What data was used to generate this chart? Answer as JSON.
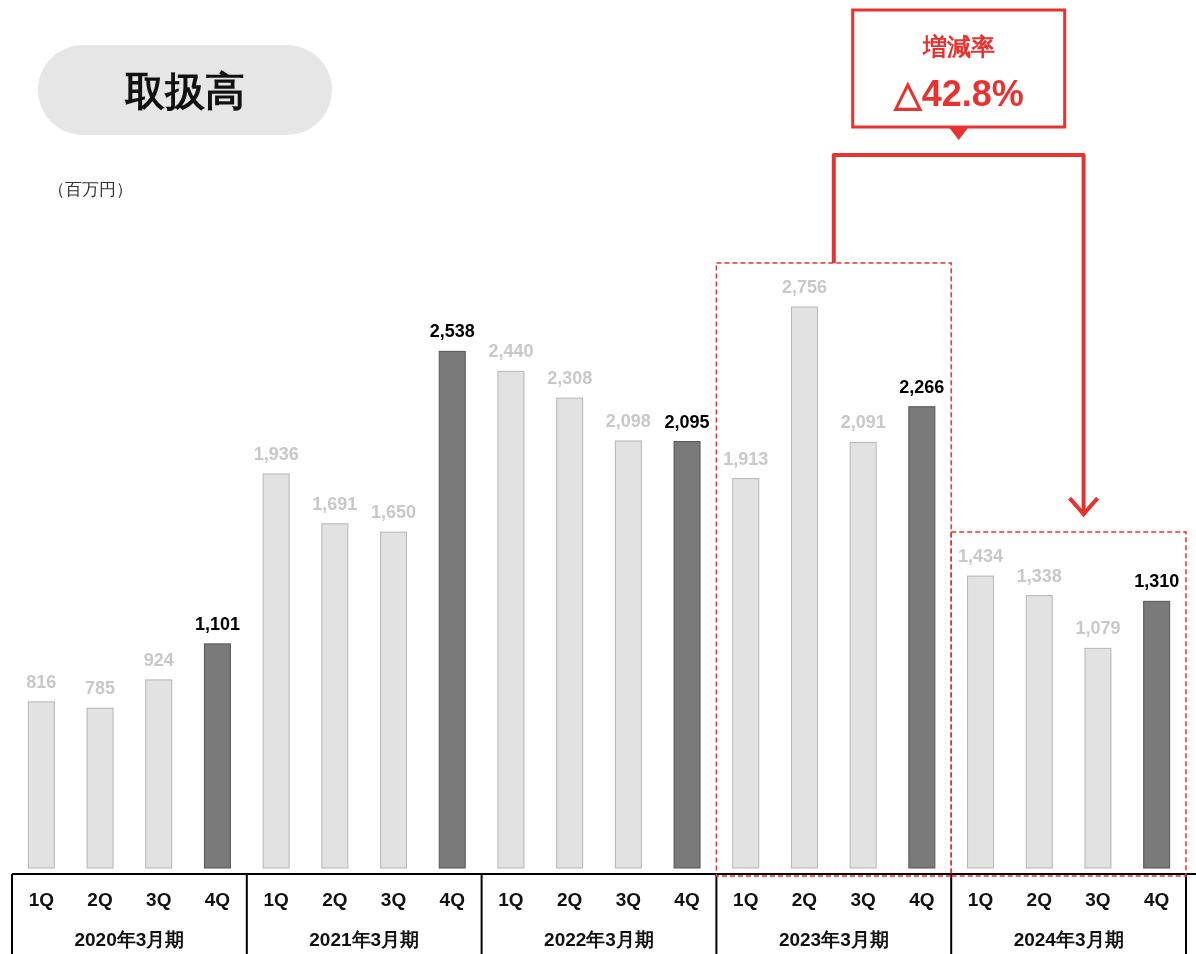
{
  "chart_data": {
    "type": "bar",
    "title": "取扱高",
    "subtitle": "（百万円）",
    "categories": [
      "1Q",
      "2Q",
      "3Q",
      "4Q",
      "1Q",
      "2Q",
      "3Q",
      "4Q",
      "1Q",
      "2Q",
      "3Q",
      "4Q",
      "1Q",
      "2Q",
      "3Q",
      "4Q",
      "1Q",
      "2Q",
      "3Q",
      "4Q"
    ],
    "values": [
      816,
      785,
      924,
      1101,
      1936,
      1691,
      1650,
      2538,
      2440,
      2308,
      2098,
      2095,
      1913,
      2756,
      2091,
      2266,
      1434,
      1338,
      1079,
      1310
    ],
    "colors": [
      "#e2e2e2",
      "#e2e2e2",
      "#e2e2e2",
      "#7a7a7a",
      "#e2e2e2",
      "#e2e2e2",
      "#e2e2e2",
      "#7a7a7a",
      "#e2e2e2",
      "#e2e2e2",
      "#e2e2e2",
      "#7a7a7a",
      "#e2e2e2",
      "#e2e2e2",
      "#e2e2e2",
      "#7a7a7a",
      "#e2e2e2",
      "#e2e2e2",
      "#e2e2e2",
      "#7a7a7a"
    ],
    "value_labels": [
      "816",
      "785",
      "924",
      "1,101",
      "1,936",
      "1,691",
      "1,650",
      "2,538",
      "2,440",
      "2,308",
      "2,098",
      "2,095",
      "1,913",
      "2,756",
      "2,091",
      "2,266",
      "1,434",
      "1,338",
      "1,079",
      "1,310"
    ],
    "annotations": [
      "2020年3月期",
      "2021年3月期",
      "2022年3月期",
      "2023年3月期",
      "2024年3月期",
      "増減率",
      "△42.8%"
    ]
  }
}
